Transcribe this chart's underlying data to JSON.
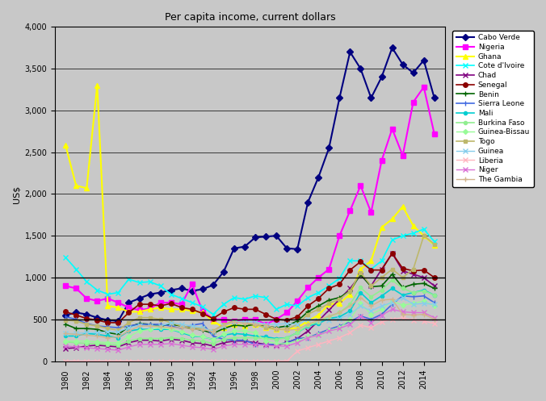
{
  "title": "Per capita income, current dollars",
  "ylabel": "US$",
  "years": [
    1980,
    1981,
    1982,
    1983,
    1984,
    1985,
    1986,
    1987,
    1988,
    1989,
    1990,
    1991,
    1992,
    1993,
    1994,
    1995,
    1996,
    1997,
    1998,
    1999,
    2000,
    2001,
    2002,
    2003,
    2004,
    2005,
    2006,
    2007,
    2008,
    2009,
    2010,
    2011,
    2012,
    2013,
    2014,
    2015
  ],
  "series": {
    "Cabo Verde": {
      "color": "#000080",
      "marker": "D",
      "markersize": 4,
      "linewidth": 1.5,
      "data": [
        550,
        580,
        560,
        520,
        490,
        480,
        700,
        750,
        800,
        820,
        850,
        870,
        840,
        860,
        910,
        1070,
        1350,
        1370,
        1480,
        1490,
        1500,
        1350,
        1340,
        1900,
        2200,
        2550,
        3150,
        3700,
        3500,
        3150,
        3400,
        3750,
        3550,
        3450,
        3600,
        3150
      ]
    },
    "Nigeria": {
      "color": "#FF00FF",
      "marker": "s",
      "markersize": 4,
      "linewidth": 1.5,
      "data": [
        900,
        870,
        750,
        720,
        750,
        700,
        640,
        610,
        630,
        700,
        700,
        680,
        920,
        600,
        500,
        500,
        480,
        500,
        500,
        440,
        500,
        580,
        720,
        880,
        1000,
        1100,
        1500,
        1800,
        2100,
        1780,
        2400,
        2780,
        2460,
        3100,
        3280,
        2720
      ]
    },
    "Ghana": {
      "color": "#FFFF00",
      "marker": "^",
      "markersize": 4,
      "linewidth": 1.5,
      "data": [
        2580,
        2100,
        2070,
        3300,
        660,
        640,
        590,
        590,
        620,
        640,
        620,
        620,
        600,
        580,
        480,
        400,
        440,
        420,
        440,
        400,
        380,
        380,
        400,
        480,
        550,
        680,
        690,
        800,
        1100,
        1200,
        1600,
        1700,
        1850,
        1620,
        1500,
        1390
      ]
    },
    "Cote d'Ivoire": {
      "color": "#00FFFF",
      "marker": "x",
      "markersize": 4,
      "linewidth": 1.2,
      "data": [
        1240,
        1100,
        950,
        850,
        800,
        820,
        980,
        940,
        950,
        900,
        800,
        750,
        700,
        650,
        560,
        680,
        760,
        740,
        780,
        760,
        620,
        680,
        660,
        760,
        820,
        900,
        990,
        1200,
        1200,
        1100,
        1200,
        1450,
        1500,
        1530,
        1580,
        1430
      ]
    },
    "Chad": {
      "color": "#800080",
      "marker": "x",
      "markersize": 4,
      "linewidth": 1.2,
      "data": [
        150,
        160,
        180,
        190,
        180,
        170,
        220,
        250,
        250,
        240,
        260,
        250,
        220,
        210,
        180,
        220,
        240,
        240,
        220,
        200,
        190,
        220,
        270,
        360,
        480,
        610,
        740,
        870,
        1030,
        900,
        1100,
        1290,
        1080,
        1040,
        1000,
        900
      ]
    },
    "Senegal": {
      "color": "#8B0000",
      "marker": "o",
      "markersize": 4,
      "linewidth": 1.2,
      "data": [
        590,
        550,
        510,
        490,
        460,
        460,
        580,
        680,
        680,
        660,
        690,
        640,
        620,
        570,
        510,
        590,
        640,
        620,
        620,
        560,
        500,
        490,
        530,
        660,
        750,
        870,
        920,
        1090,
        1190,
        1090,
        1090,
        1290,
        1110,
        1080,
        1090,
        1000
      ]
    },
    "Benin": {
      "color": "#006400",
      "marker": "+",
      "markersize": 5,
      "linewidth": 1.2,
      "data": [
        440,
        390,
        390,
        380,
        340,
        320,
        410,
        450,
        440,
        420,
        440,
        420,
        390,
        370,
        330,
        390,
        430,
        420,
        440,
        420,
        400,
        420,
        480,
        590,
        660,
        730,
        760,
        840,
        1040,
        890,
        900,
        1040,
        880,
        920,
        930,
        870
      ]
    },
    "Sierra Leone": {
      "color": "#4169E1",
      "marker": "|",
      "markersize": 4,
      "linewidth": 1.2,
      "data": [
        530,
        500,
        450,
        420,
        410,
        400,
        420,
        440,
        440,
        440,
        420,
        390,
        430,
        450,
        300,
        260,
        250,
        250,
        200,
        200,
        200,
        220,
        270,
        280,
        330,
        380,
        420,
        470,
        540,
        500,
        560,
        680,
        780,
        770,
        780,
        700
      ]
    },
    "Mali": {
      "color": "#00CED1",
      "marker": "o",
      "markersize": 3,
      "linewidth": 1.2,
      "data": [
        300,
        300,
        330,
        320,
        300,
        280,
        360,
        380,
        380,
        380,
        380,
        340,
        300,
        290,
        260,
        310,
        330,
        320,
        300,
        290,
        270,
        280,
        340,
        420,
        450,
        510,
        530,
        600,
        820,
        700,
        780,
        870,
        790,
        820,
        850,
        790
      ]
    },
    "Burkina Faso": {
      "color": "#90EE90",
      "marker": "o",
      "markersize": 3,
      "linewidth": 1.2,
      "data": [
        230,
        220,
        210,
        210,
        200,
        190,
        240,
        270,
        270,
        270,
        280,
        270,
        250,
        240,
        210,
        260,
        280,
        280,
        280,
        270,
        260,
        280,
        340,
        430,
        470,
        530,
        580,
        680,
        880,
        770,
        850,
        970,
        870,
        820,
        840,
        790
      ]
    },
    "Guinea-Bissau": {
      "color": "#98FB98",
      "marker": "D",
      "markersize": 3,
      "linewidth": 1.0,
      "data": [
        240,
        240,
        240,
        230,
        220,
        220,
        290,
        360,
        380,
        400,
        380,
        350,
        310,
        290,
        260,
        320,
        360,
        360,
        340,
        240,
        210,
        210,
        240,
        290,
        310,
        370,
        400,
        500,
        690,
        560,
        620,
        720,
        670,
        690,
        720,
        660
      ]
    },
    "Togo": {
      "color": "#BDB76B",
      "marker": "s",
      "markersize": 3,
      "linewidth": 1.2,
      "data": [
        490,
        480,
        440,
        420,
        390,
        370,
        460,
        520,
        520,
        500,
        460,
        420,
        400,
        390,
        360,
        440,
        480,
        460,
        440,
        400,
        380,
        380,
        440,
        560,
        620,
        690,
        740,
        840,
        1060,
        900,
        1000,
        1100,
        1000,
        1100,
        1500,
        1400
      ]
    },
    "Guinea": {
      "color": "#87CEEB",
      "marker": "x",
      "markersize": 4,
      "linewidth": 1.0,
      "data": [
        330,
        330,
        340,
        340,
        350,
        350,
        400,
        430,
        420,
        420,
        460,
        440,
        420,
        400,
        350,
        420,
        470,
        470,
        470,
        440,
        440,
        450,
        440,
        500,
        490,
        490,
        510,
        560,
        660,
        600,
        660,
        700,
        760,
        680,
        690,
        680
      ]
    },
    "Liberia": {
      "color": "#FFB6C1",
      "marker": "x",
      "markersize": 4,
      "linewidth": 1.0,
      "data": [
        0,
        0,
        0,
        0,
        0,
        0,
        0,
        0,
        0,
        0,
        0,
        0,
        0,
        0,
        0,
        0,
        0,
        0,
        0,
        0,
        0,
        0,
        120,
        160,
        200,
        240,
        280,
        340,
        430,
        400,
        470,
        500,
        520,
        490,
        480,
        450
      ]
    },
    "Niger": {
      "color": "#DA70D6",
      "marker": "x",
      "markersize": 4,
      "linewidth": 1.0,
      "data": [
        180,
        170,
        160,
        150,
        140,
        130,
        170,
        200,
        200,
        200,
        210,
        190,
        170,
        160,
        140,
        180,
        200,
        200,
        200,
        190,
        180,
        180,
        220,
        280,
        310,
        360,
        390,
        440,
        540,
        460,
        550,
        620,
        590,
        580,
        580,
        520
      ]
    },
    "The Gambia": {
      "color": "#D2B48C",
      "marker": "+",
      "markersize": 5,
      "linewidth": 1.0,
      "data": [
        330,
        320,
        310,
        300,
        280,
        290,
        360,
        420,
        420,
        410,
        400,
        400,
        380,
        380,
        350,
        430,
        470,
        450,
        440,
        430,
        390,
        370,
        380,
        440,
        490,
        540,
        580,
        660,
        760,
        660,
        730,
        740,
        560,
        550,
        560,
        500
      ]
    }
  },
  "ylim": [
    0,
    4000
  ],
  "yticks": [
    0,
    500,
    1000,
    1500,
    2000,
    2500,
    3000,
    3500,
    4000
  ],
  "bg_color": "#C8C8C8"
}
